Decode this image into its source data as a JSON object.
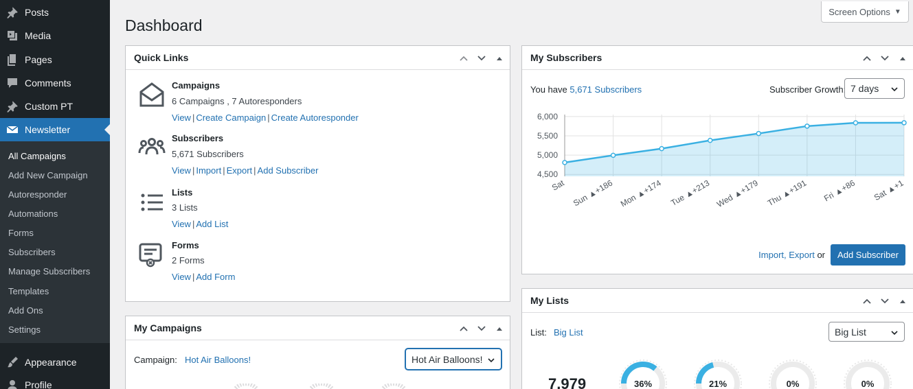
{
  "sidebar": {
    "menu": [
      {
        "label": "Posts",
        "icon": "pin-icon"
      },
      {
        "label": "Media",
        "icon": "media-icon"
      },
      {
        "label": "Pages",
        "icon": "pages-icon"
      },
      {
        "label": "Comments",
        "icon": "comment-icon"
      },
      {
        "label": "Custom PT",
        "icon": "pin-icon"
      },
      {
        "label": "Newsletter",
        "icon": "envelope-icon"
      }
    ],
    "submenu": [
      "All Campaigns",
      "Add New Campaign",
      "Autoresponder",
      "Automations",
      "Forms",
      "Subscribers",
      "Manage Subscribers",
      "Templates",
      "Add Ons",
      "Settings"
    ],
    "menu_bottom": [
      {
        "label": "Appearance",
        "icon": "brush-icon"
      },
      {
        "label": "Profile",
        "icon": "user-icon"
      }
    ]
  },
  "screen_options": "Screen Options",
  "page_title": "Dashboard",
  "quick_links": {
    "title": "Quick Links",
    "items": [
      {
        "title": "Campaigns",
        "count": "6 Campaigns , 7 Autoresponders",
        "links": [
          "View",
          "Create Campaign",
          "Create Autoresponder"
        ]
      },
      {
        "title": "Subscribers",
        "count": "5,671 Subscribers",
        "links": [
          "View",
          "Import",
          "Export",
          "Add Subscriber"
        ]
      },
      {
        "title": "Lists",
        "count": "3 Lists",
        "links": [
          "View",
          "Add List"
        ]
      },
      {
        "title": "Forms",
        "count": "2 Forms",
        "links": [
          "View",
          "Add Form"
        ]
      }
    ]
  },
  "my_campaigns": {
    "title": "My Campaigns",
    "campaign_label": "Campaign:",
    "campaign_link": "Hot Air Balloons!",
    "select_value": "Hot Air Balloons!"
  },
  "my_subscribers": {
    "title": "My Subscribers",
    "you_have": "You have",
    "subscribers_link": "5,671 Subscribers",
    "growth_label": "Subscriber Growth:",
    "growth_select": "7 days",
    "import_export": "Import, Export",
    "or": "or",
    "add_button": "Add Subscriber"
  },
  "my_lists": {
    "title": "My Lists",
    "list_label": "List:",
    "list_link": "Big List",
    "select_value": "Big List",
    "total": "7,979",
    "rings": [
      {
        "pct": 36,
        "label": "36%"
      },
      {
        "pct": 21,
        "label": "21%"
      },
      {
        "pct": 0,
        "label": "0%"
      },
      {
        "pct": 0,
        "label": "0%"
      }
    ]
  },
  "chart_data": {
    "type": "area",
    "categories": [
      "Sat",
      "Sun ▲+186",
      "Mon ▲+174",
      "Tue ▲+213",
      "Wed ▲+179",
      "Thu ▲+191",
      "Fri ▲+86",
      "Sat ▲+1"
    ],
    "series": [
      {
        "values": [
          4808,
          4994,
          5168,
          5381,
          5560,
          5751,
          5837,
          5838
        ]
      }
    ],
    "yticks": [
      4500,
      5000,
      5500,
      6000
    ],
    "ytick_labels": [
      "4,500",
      "5,000",
      "5,500",
      "6,000"
    ],
    "ylim": [
      4450,
      6050
    ],
    "grid": true,
    "color": "#3ab0e2"
  }
}
